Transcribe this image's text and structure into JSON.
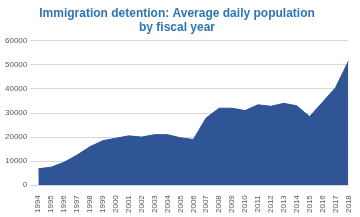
{
  "chart_data": {
    "type": "area",
    "title": [
      "Immigration detention: Average daily population",
      "by fiscal year"
    ],
    "categories": [
      "1994",
      "1995",
      "1996",
      "1997",
      "1998",
      "1999",
      "2000",
      "2001",
      "2002",
      "2003",
      "2004",
      "2005",
      "2006",
      "2007",
      "2008",
      "2009",
      "2010",
      "2011",
      "2012",
      "2013",
      "2014",
      "2015",
      "2016",
      "2017",
      "2018"
    ],
    "values": [
      6800,
      7500,
      9500,
      12500,
      16000,
      18500,
      19500,
      20500,
      20000,
      21000,
      21000,
      19700,
      19000,
      28000,
      32000,
      32000,
      31000,
      33400,
      32800,
      34000,
      33000,
      28500,
      34500,
      40500,
      51500
    ],
    "color": "#2f5597",
    "ylim": [
      0,
      60000
    ],
    "yticks": [
      0,
      10000,
      20000,
      30000,
      40000,
      50000,
      60000
    ],
    "grid": true
  }
}
